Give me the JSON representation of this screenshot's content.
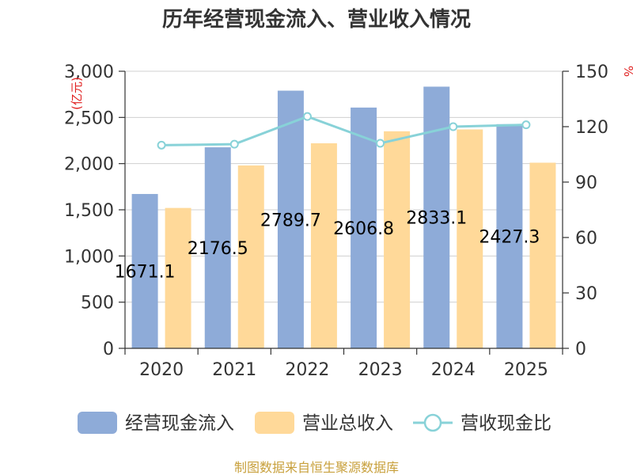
{
  "chart_data": {
    "type": "bar",
    "title": "历年经营现金流入、营业收入情况",
    "categories": [
      "2020",
      "2021",
      "2022",
      "2023",
      "2024",
      "2025"
    ],
    "series": [
      {
        "name": "经营现金流入",
        "kind": "bar",
        "axis": "left",
        "color": "#8eabd8",
        "values": [
          1671.1,
          2176.5,
          2789.7,
          2606.8,
          2833.1,
          2427.3
        ],
        "labels": [
          "1671.1",
          "2176.5",
          "2789.7",
          "2606.8",
          "2833.1",
          "2427.3"
        ]
      },
      {
        "name": "营业总收入",
        "kind": "bar",
        "axis": "left",
        "color": "#ffd999",
        "values": [
          1520,
          1980,
          2220,
          2350,
          2370,
          2010
        ]
      },
      {
        "name": "营收现金比",
        "kind": "line",
        "axis": "right",
        "color": "#88d2d8",
        "values": [
          110,
          110.5,
          125.5,
          111,
          120,
          121
        ]
      }
    ],
    "y_left": {
      "unit": "亿元",
      "min": 0,
      "max": 3000,
      "ticks": [
        0,
        500,
        1000,
        1500,
        2000,
        2500,
        3000
      ],
      "tick_labels": [
        "0",
        "500",
        "1,000",
        "1,500",
        "2,000",
        "2,500",
        "3,000"
      ]
    },
    "y_right": {
      "unit": "%",
      "min": 0,
      "max": 150,
      "ticks": [
        0,
        30,
        60,
        90,
        120,
        150
      ],
      "tick_labels": [
        "0",
        "30",
        "60",
        "90",
        "120",
        "150"
      ]
    },
    "grid": true,
    "legend_position": "bottom",
    "source": "制图数据来自恒生聚源数据库"
  }
}
